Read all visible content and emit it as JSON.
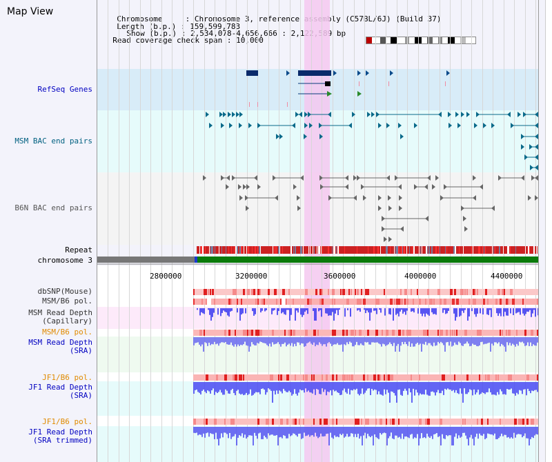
{
  "title": "Map View",
  "info": {
    "chromosome_key": "Chromosome",
    "chromosome_val": "Chromosome 3, reference assembly (C57BL/6J) (Build 37)",
    "length_key": "Length (b.p.)",
    "length_val": "159,599,783",
    "show_key": "Show (b.p.)",
    "show_val": "2,534,078-4,656,666 : 2,122,589 bp",
    "span_key": "Read coverage check span",
    "span_val": "10,000"
  },
  "tracks": {
    "refseq": "RefSeq Genes",
    "msm_bac": "MSM BAC end pairs",
    "b6n_bac": "B6N BAC end pairs",
    "repeat": "Repeat",
    "chromosome": "chromosome 3",
    "dbsnp": "dbSNP(Mouse)",
    "msm_b6_pol_1": "MSM/B6 pol.",
    "msm_read_depth_cap_1": "MSM Read Depth",
    "msm_read_depth_cap_2": "(Capillary)",
    "msm_b6_pol_2": "MSM/B6 pol.",
    "msm_read_depth_sra_1": "MSM Read Depth",
    "msm_read_depth_sra_2": "(SRA)",
    "jf1_b6_pol_1": "JF1/B6 pol.",
    "jf1_read_depth_sra_1": "JF1 Read Depth",
    "jf1_read_depth_sra_2": "(SRA)",
    "jf1_b6_pol_2": "JF1/B6 pol.",
    "jf1_read_depth_trim_1": "JF1 Read Depth",
    "jf1_read_depth_trim_2": "(SRA trimmed)"
  },
  "axis_ticks": [
    "2800000",
    "3200000",
    "3600000",
    "4000000",
    "4400000"
  ],
  "colors": {
    "refseq_label": "#0000c0",
    "msm_bac_label": "#006080",
    "b6n_label": "#555555",
    "orange_label": "#e08a00",
    "highlight": "#f4c8f0",
    "blue_depth": "#3a3af0",
    "pol_red": "#ee2222"
  }
}
